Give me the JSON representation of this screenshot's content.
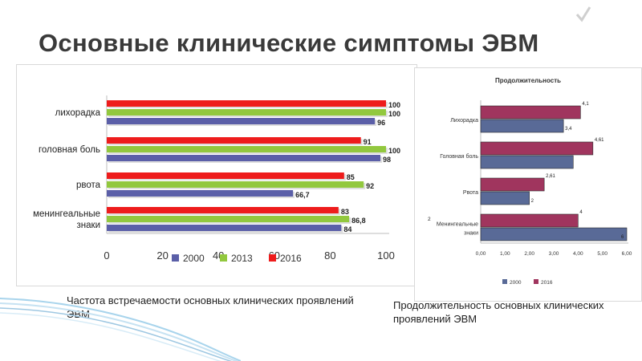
{
  "title": "Основные клинические симптомы ЭВМ",
  "captions": {
    "left": "Частота встречаемости основных клинических проявлений ЭВМ",
    "right": "Продолжительность основных клинических проявлений ЭВМ"
  },
  "colors": {
    "blue": "#5b5fa8",
    "green": "#92c83e",
    "red": "#ee1c1c",
    "plum": "#a0355e",
    "slate": "#596a97"
  },
  "chart_data": [
    {
      "type": "bar",
      "orientation": "horizontal",
      "title": "",
      "categories": [
        "лихорадка",
        "головная боль",
        "рвота",
        "менингеальные знаки"
      ],
      "category_lines": [
        [
          "лихорадка"
        ],
        [
          "головная боль"
        ],
        [
          "рвота"
        ],
        [
          "менингеальные",
          "знаки"
        ]
      ],
      "series": [
        {
          "name": "2000",
          "color": "#5b5fa8",
          "values": [
            96,
            98,
            66.7,
            84
          ],
          "labels": [
            "96",
            "98",
            "66,7",
            "84"
          ]
        },
        {
          "name": "2013",
          "color": "#92c83e",
          "values": [
            100,
            100,
            92,
            86.8
          ],
          "labels": [
            "100",
            "100",
            "92",
            "86,8"
          ]
        },
        {
          "name": "2016",
          "color": "#ee1c1c",
          "values": [
            100,
            91,
            85,
            83
          ],
          "labels": [
            "100",
            "91",
            "85",
            "83"
          ]
        }
      ],
      "xticks": [
        "0",
        "20",
        "40",
        "60",
        "80",
        "100"
      ],
      "xlim": [
        0,
        100
      ],
      "legend": "bottom",
      "grid": false
    },
    {
      "type": "bar",
      "orientation": "horizontal",
      "title": "Продолжительность",
      "categories": [
        "Лихорадка",
        "Головная боль",
        "Рвота",
        "Менингеальные знаки"
      ],
      "category_lines": [
        [
          "Лихорадка"
        ],
        [
          "Головная боль"
        ],
        [
          "Рвота"
        ],
        [
          "Менингеальные",
          "знаки"
        ]
      ],
      "series": [
        {
          "name": "2000",
          "color": "#596a97",
          "values": [
            3.4,
            3.8,
            2,
            6
          ],
          "labels": [
            "3,4",
            "",
            "2",
            "6"
          ]
        },
        {
          "name": "2016",
          "color": "#a0355e",
          "values": [
            4.1,
            4.61,
            2.61,
            4
          ],
          "labels": [
            "4,1",
            "4,61",
            "2,61",
            "4"
          ]
        }
      ],
      "extra_label": "2",
      "xticks": [
        "0,00",
        "1,00",
        "2,00",
        "3,00",
        "4,00",
        "5,00",
        "6,00"
      ],
      "xlim": [
        0,
        6
      ],
      "legend": "bottom",
      "grid": false
    }
  ]
}
